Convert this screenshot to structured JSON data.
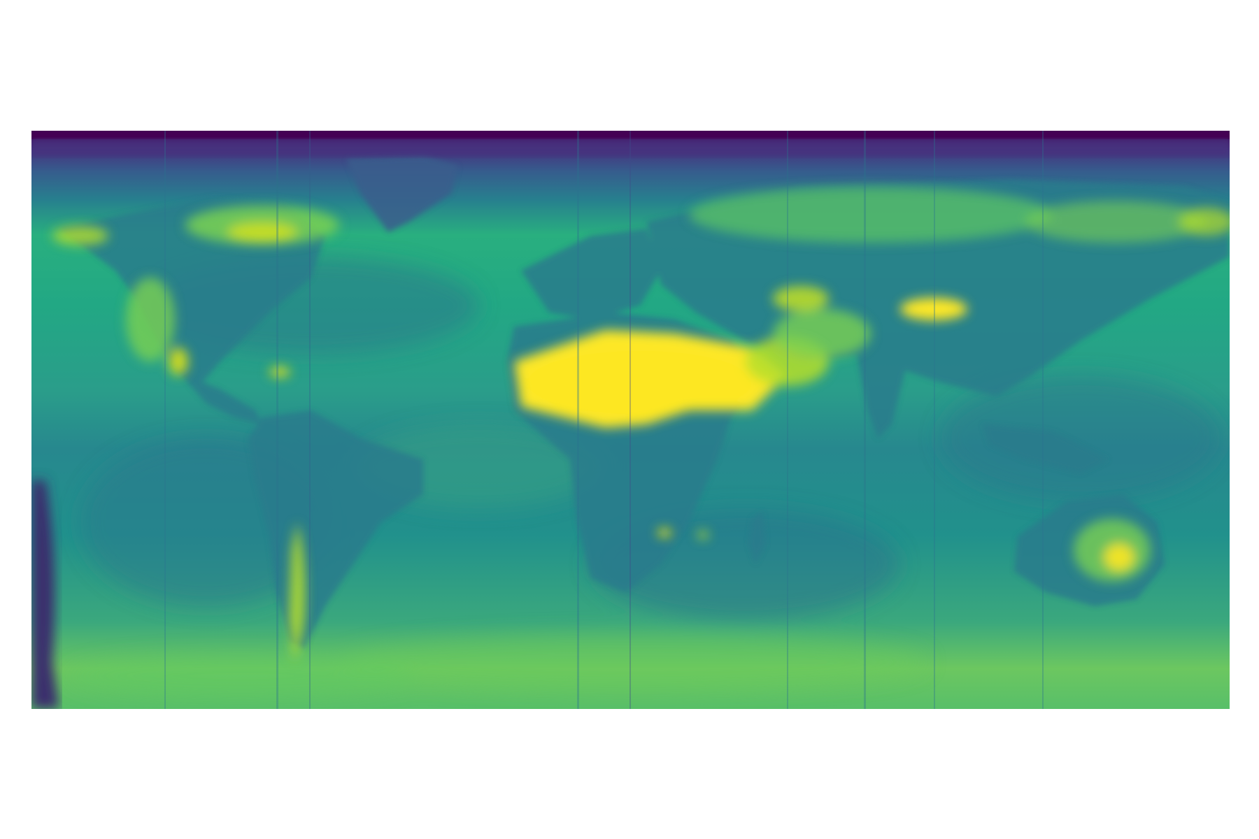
{
  "map": {
    "projection": "equirectangular",
    "extent_lon": [
      -180,
      180
    ],
    "extent_lat": [
      -90,
      90
    ],
    "colormap": "viridis",
    "colormap_stops": [
      "#440154",
      "#3b528b",
      "#21918c",
      "#5ec962",
      "#fde725"
    ],
    "axes_visible": false,
    "colorbar_visible": false,
    "title": "",
    "background_color": "#21918c",
    "visual_regions": [
      {
        "name": "arctic-low-band",
        "level": "lowest"
      },
      {
        "name": "sahara-arabia-maximum",
        "level": "highest"
      },
      {
        "name": "tarim-basin-high",
        "level": "highest"
      },
      {
        "name": "australia-interior-high",
        "level": "high"
      },
      {
        "name": "southern-ocean-high",
        "level": "high"
      },
      {
        "name": "south-pacific-edge-low",
        "level": "lowest"
      }
    ]
  }
}
